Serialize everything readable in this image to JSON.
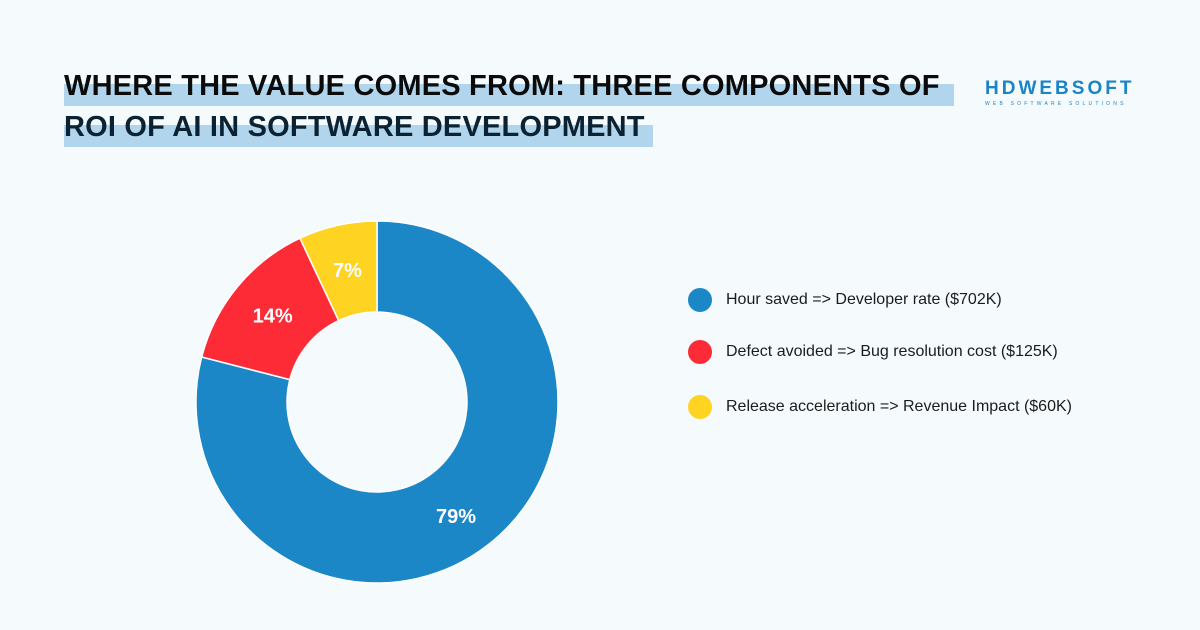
{
  "title": {
    "line1": "WHERE THE VALUE COMES FROM: THREE COMPONENTS OF",
    "line2": "ROI OF AI IN SOFTWARE DEVELOPMENT"
  },
  "logo": {
    "name": "HDWEBSOFT",
    "tagline": "WEB SOFTWARE SOLUTIONS"
  },
  "chart_data": {
    "type": "pie",
    "variant": "donut",
    "categories": [
      "Hour saved => Developer rate ($702K)",
      "Defect avoided => Bug resolution cost ($125K)",
      "Release acceleration => Revenue Impact ($60K)"
    ],
    "values": [
      79,
      14,
      7
    ],
    "labels": [
      "79%",
      "14%",
      "7%"
    ],
    "colors": [
      "#1b87c7",
      "#fc2b36",
      "#fed322"
    ],
    "legend_position": "right"
  }
}
